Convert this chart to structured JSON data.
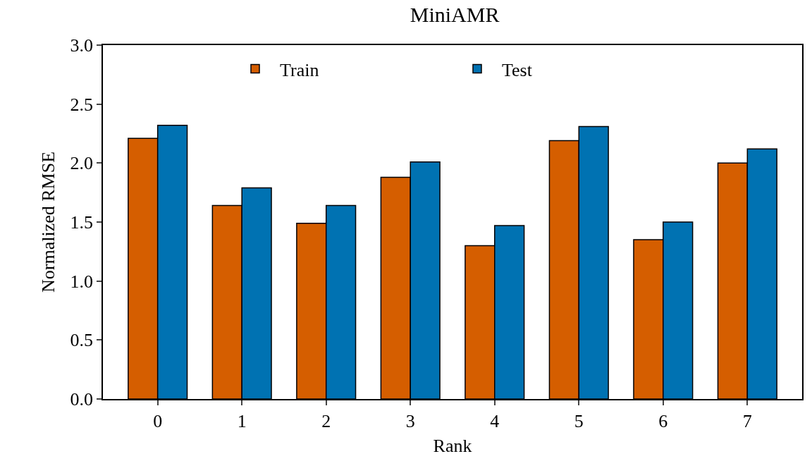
{
  "chart_data": {
    "type": "bar",
    "title": "MiniAMR",
    "xlabel": "Rank",
    "ylabel": "Normalized RMSE",
    "categories": [
      "0",
      "1",
      "2",
      "3",
      "4",
      "5",
      "6",
      "7"
    ],
    "series": [
      {
        "name": "Train",
        "color": "#d55e00",
        "values": [
          2.21,
          1.64,
          1.49,
          1.88,
          1.3,
          2.19,
          1.35,
          2.0
        ]
      },
      {
        "name": "Test",
        "color": "#0072b2",
        "values": [
          2.32,
          1.79,
          1.64,
          2.01,
          1.47,
          2.31,
          1.5,
          2.12
        ]
      }
    ],
    "ylim": [
      0,
      3
    ],
    "yticks": [
      {
        "value": 0,
        "label": "0.0"
      },
      {
        "value": 0.5,
        "label": "0.5"
      },
      {
        "value": 1,
        "label": "1.0"
      },
      {
        "value": 1.5,
        "label": "1.5"
      },
      {
        "value": 2,
        "label": "2.0"
      },
      {
        "value": 2.5,
        "label": "2.5"
      },
      {
        "value": 3,
        "label": "3.0"
      }
    ],
    "grid": false,
    "legend": "top"
  }
}
